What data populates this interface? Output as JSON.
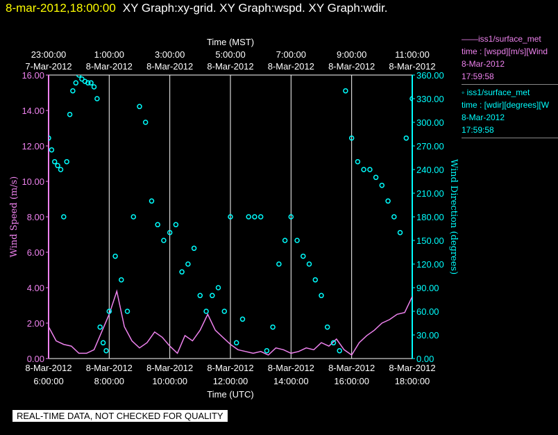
{
  "header": {
    "timestamp": "8-mar-2012,18:00:00",
    "graphs": "XY Graph:xy-grid.  XY Graph:wspd.  XY Graph:wdir."
  },
  "legend": {
    "wspd": {
      "line": "——iss1/surface_met",
      "var": "time : [wspd][m/s][Wind",
      "date": "8-Mar-2012",
      "time": "17:59:58"
    },
    "wdir": {
      "line": "◦  iss1/surface_met",
      "var": "time : [wdir][degrees][W",
      "date": "8-Mar-2012",
      "time": "17:59:58"
    }
  },
  "disclaimer": "REAL-TIME DATA, NOT CHECKED FOR QUALITY",
  "colors": {
    "wspd": "#ee82ee",
    "wdir": "#00ffff",
    "grid": "#ffffff",
    "background": "#000000"
  },
  "chart_data": {
    "type": "line+scatter",
    "top_axis": {
      "label": "Time (MST)",
      "ticks": [
        {
          "time": "23:00:00",
          "date": "7-Mar-2012"
        },
        {
          "time": "1:00:00",
          "date": "8-Mar-2012"
        },
        {
          "time": "3:00:00",
          "date": "8-Mar-2012"
        },
        {
          "time": "5:00:00",
          "date": "8-Mar-2012"
        },
        {
          "time": "7:00:00",
          "date": "8-Mar-2012"
        },
        {
          "time": "9:00:00",
          "date": "8-Mar-2012"
        },
        {
          "time": "11:00:00",
          "date": "8-Mar-2012"
        }
      ]
    },
    "bottom_axis": {
      "label": "Time (UTC)",
      "ticks": [
        {
          "date": "8-Mar-2012",
          "time": "6:00:00"
        },
        {
          "date": "8-Mar-2012",
          "time": "8:00:00"
        },
        {
          "date": "8-Mar-2012",
          "time": "10:00:00"
        },
        {
          "date": "8-Mar-2012",
          "time": "12:00:00"
        },
        {
          "date": "8-Mar-2012",
          "time": "14:00:00"
        },
        {
          "date": "8-Mar-2012",
          "time": "16:00:00"
        },
        {
          "date": "8-Mar-2012",
          "time": "18:00:00"
        }
      ],
      "xlim_hours_utc": [
        6,
        18
      ]
    },
    "left_axis": {
      "label": "Wind Speed (m/s)",
      "ylim": [
        0,
        16
      ],
      "ticks": [
        "0.00",
        "2.00",
        "4.00",
        "6.00",
        "8.00",
        "10.00",
        "12.00",
        "14.00",
        "16.00"
      ]
    },
    "right_axis": {
      "label": "Wind Direction (degrees)",
      "ylim": [
        0,
        360
      ],
      "ticks": [
        "0.00",
        "30.00",
        "60.00",
        "90.00",
        "120.00",
        "150.00",
        "180.00",
        "210.00",
        "240.00",
        "270.00",
        "300.00",
        "330.00",
        "360.00"
      ]
    },
    "grid": "vertical",
    "series": [
      {
        "name": "iss1/surface_met wspd",
        "axis": "left",
        "style": "line",
        "x_hours_utc": [
          6.0,
          6.25,
          6.5,
          6.75,
          7.0,
          7.25,
          7.5,
          7.75,
          8.0,
          8.25,
          8.5,
          8.75,
          9.0,
          9.25,
          9.5,
          9.75,
          10.0,
          10.25,
          10.5,
          10.75,
          11.0,
          11.25,
          11.5,
          11.75,
          12.0,
          12.25,
          12.5,
          12.75,
          13.0,
          13.25,
          13.5,
          13.75,
          14.0,
          14.25,
          14.5,
          14.75,
          15.0,
          15.25,
          15.5,
          15.75,
          16.0,
          16.25,
          16.5,
          16.75,
          17.0,
          17.25,
          17.5,
          17.75,
          18.0
        ],
        "y": [
          1.8,
          1.0,
          0.8,
          0.7,
          0.3,
          0.3,
          0.5,
          1.5,
          2.5,
          3.8,
          1.8,
          1.0,
          0.6,
          0.9,
          1.5,
          1.2,
          0.7,
          0.3,
          1.3,
          1.0,
          1.6,
          2.5,
          1.6,
          1.2,
          0.8,
          0.5,
          0.4,
          0.3,
          0.4,
          0.2,
          0.6,
          0.5,
          0.3,
          0.4,
          0.6,
          0.5,
          0.9,
          0.7,
          1.1,
          0.5,
          0.2,
          0.9,
          1.3,
          1.6,
          2.0,
          2.2,
          2.5,
          2.6,
          3.5
        ]
      },
      {
        "name": "iss1/surface_met wdir",
        "axis": "right",
        "style": "markers",
        "x_hours_utc": [
          6.0,
          6.1,
          6.2,
          6.3,
          6.4,
          6.5,
          6.6,
          6.7,
          6.8,
          6.9,
          7.0,
          7.1,
          7.2,
          7.3,
          7.4,
          7.5,
          7.6,
          7.7,
          7.8,
          7.9,
          8.0,
          8.2,
          8.4,
          8.6,
          8.8,
          9.0,
          9.2,
          9.4,
          9.6,
          9.8,
          10.0,
          10.2,
          10.4,
          10.6,
          10.8,
          11.0,
          11.2,
          11.4,
          11.6,
          11.8,
          12.0,
          12.2,
          12.4,
          12.6,
          12.8,
          13.0,
          13.2,
          13.4,
          13.6,
          13.8,
          14.0,
          14.2,
          14.4,
          14.6,
          14.8,
          15.0,
          15.2,
          15.4,
          15.6,
          15.8,
          16.0,
          16.2,
          16.4,
          16.6,
          16.8,
          17.0,
          17.2,
          17.4,
          17.6,
          17.8,
          18.0
        ],
        "y": [
          280,
          265,
          250,
          245,
          240,
          180,
          250,
          310,
          340,
          350,
          360,
          355,
          352,
          350,
          350,
          345,
          330,
          40,
          20,
          10,
          60,
          130,
          100,
          60,
          180,
          320,
          300,
          200,
          170,
          150,
          160,
          170,
          110,
          120,
          140,
          80,
          60,
          80,
          90,
          60,
          180,
          20,
          50,
          180,
          180,
          180,
          10,
          40,
          120,
          150,
          180,
          150,
          130,
          120,
          100,
          80,
          40,
          20,
          10,
          340,
          280,
          250,
          240,
          240,
          230,
          220,
          200,
          180,
          160,
          280,
          330
        ]
      }
    ]
  }
}
